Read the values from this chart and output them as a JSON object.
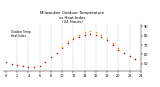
{
  "title": "Milwaukee Outdoor Temperature\nvs Heat Index\n(24 Hours)",
  "temp_hours": [
    0,
    1,
    2,
    3,
    4,
    5,
    6,
    7,
    8,
    9,
    10,
    11,
    12,
    13,
    14,
    15,
    16,
    17,
    18,
    19,
    20,
    21,
    22,
    23
  ],
  "temp_values": [
    52,
    50,
    49,
    48,
    47,
    47,
    48,
    52,
    57,
    62,
    67,
    72,
    76,
    79,
    81,
    82,
    81,
    79,
    75,
    70,
    65,
    61,
    58,
    55
  ],
  "heat_hours": [
    10,
    11,
    12,
    13,
    14,
    15,
    16,
    17,
    18,
    19,
    20
  ],
  "heat_values": [
    68,
    74,
    78,
    81,
    84,
    85,
    84,
    81,
    77,
    72,
    67
  ],
  "temp_color": "#cc0000",
  "heat_color": "#ff8800",
  "grid_color": "#999999",
  "bg_color": "#ffffff",
  "ylim": [
    42,
    92
  ],
  "xlim": [
    -0.5,
    24
  ],
  "ytick_labels": [
    "50",
    "60",
    "70",
    "80",
    "90"
  ],
  "ytick_values": [
    50,
    60,
    70,
    80,
    90
  ],
  "xtick_values": [
    0,
    2,
    4,
    6,
    8,
    10,
    12,
    14,
    16,
    18,
    20,
    22,
    24
  ],
  "vgrid_values": [
    2,
    4,
    6,
    8,
    10,
    12,
    14,
    16,
    18,
    20,
    22
  ],
  "legend_temp": "Outdoor Temp",
  "legend_heat": "Heat Index"
}
